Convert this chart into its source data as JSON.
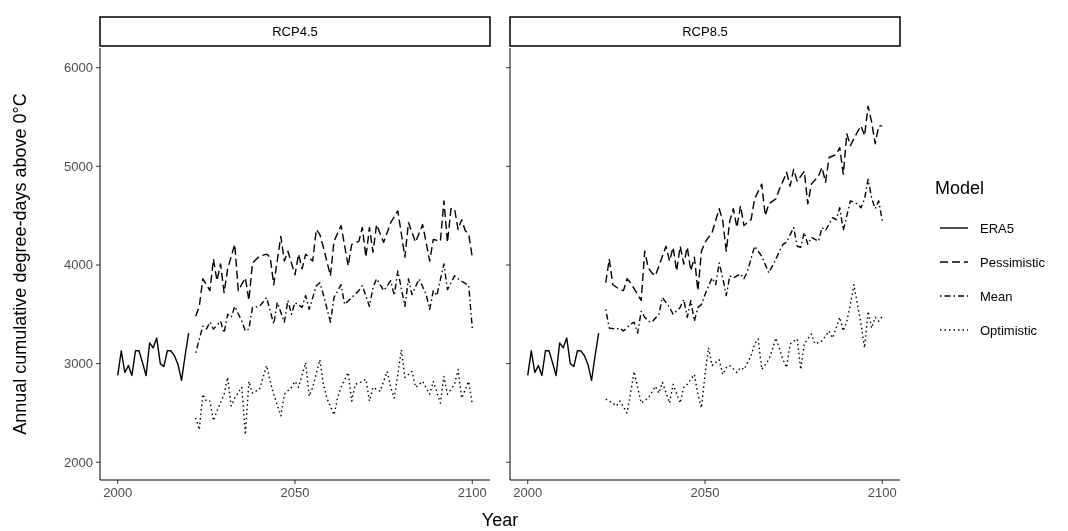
{
  "chart_data": [
    {
      "type": "line",
      "title": "RCP4.5",
      "xlabel": "Year",
      "ylabel": "Annual cumulative degree-days above 0°C",
      "xlim": [
        1995,
        2105
      ],
      "ylim": [
        1820,
        6200
      ],
      "xticks": [
        2000,
        2050,
        2100
      ],
      "yticks": [
        2000,
        3000,
        4000,
        5000,
        6000
      ],
      "grid": false,
      "legend": false,
      "series": [
        {
          "color": "#000000",
          "line_style": "solid",
          "x": [
            2000,
            2001,
            2002,
            2003,
            2004,
            2005,
            2006,
            2007,
            2008,
            2009,
            2010,
            2011,
            2012,
            2013,
            2014,
            2015,
            2016,
            2017,
            2018,
            2019,
            2020
          ],
          "values": [
            2880,
            3130,
            2910,
            2980,
            2880,
            3130,
            3130,
            3010,
            2880,
            3210,
            3160,
            3260,
            3000,
            2970,
            3130,
            3130,
            3080,
            2990,
            2830,
            3080,
            3310
          ]
        },
        {
          "color": "#000000",
          "line_style": "dashed",
          "x": [
            2022,
            2023,
            2024,
            2026,
            2027,
            2028,
            2029,
            2030,
            2031,
            2033,
            2034,
            2036,
            2037,
            2038,
            2040,
            2042,
            2043,
            2044,
            2046,
            2047,
            2048,
            2050,
            2051,
            2052,
            2053,
            2055,
            2056,
            2057,
            2058,
            2060,
            2061,
            2063,
            2065,
            2066,
            2068,
            2069,
            2070,
            2071,
            2072,
            2073,
            2075,
            2076,
            2077,
            2079,
            2081,
            2082,
            2084,
            2086,
            2088,
            2089,
            2091,
            2092,
            2093,
            2094,
            2095,
            2096,
            2097,
            2098,
            2099,
            2100
          ],
          "values": [
            3480,
            3580,
            3860,
            3740,
            4060,
            3840,
            4010,
            3720,
            3960,
            4210,
            3740,
            3870,
            3640,
            4020,
            4090,
            4110,
            4080,
            3800,
            4290,
            4040,
            4140,
            3900,
            4110,
            3960,
            4110,
            4040,
            4360,
            4310,
            4180,
            3890,
            4240,
            4400,
            3990,
            4210,
            4240,
            4380,
            4080,
            4380,
            4130,
            4410,
            4230,
            4330,
            4430,
            4550,
            4080,
            4430,
            4230,
            4410,
            4040,
            4260,
            4240,
            4650,
            4230,
            4570,
            4570,
            4360,
            4460,
            4350,
            4310,
            4080
          ]
        },
        {
          "color": "#000000",
          "line_style": "dashdot",
          "x": [
            2022,
            2024,
            2025,
            2026,
            2027,
            2029,
            2030,
            2031,
            2032,
            2033,
            2035,
            2036,
            2037,
            2038,
            2040,
            2042,
            2044,
            2045,
            2047,
            2048,
            2049,
            2050,
            2052,
            2053,
            2054,
            2056,
            2057,
            2058,
            2060,
            2061,
            2063,
            2064,
            2066,
            2068,
            2069,
            2071,
            2072,
            2073,
            2075,
            2077,
            2078,
            2079,
            2081,
            2082,
            2083,
            2085,
            2087,
            2088,
            2089,
            2090,
            2092,
            2093,
            2095,
            2096,
            2099,
            2100
          ],
          "values": [
            3110,
            3380,
            3350,
            3420,
            3350,
            3430,
            3310,
            3500,
            3470,
            3580,
            3430,
            3330,
            3350,
            3570,
            3580,
            3670,
            3400,
            3620,
            3420,
            3640,
            3500,
            3620,
            3570,
            3690,
            3550,
            3790,
            3820,
            3700,
            3420,
            3670,
            3800,
            3600,
            3670,
            3740,
            3790,
            3580,
            3770,
            3860,
            3740,
            3840,
            3690,
            3940,
            3580,
            3860,
            3700,
            3860,
            3700,
            3550,
            3740,
            3690,
            4010,
            3750,
            3890,
            3860,
            3790,
            3360
          ]
        },
        {
          "color": "#000000",
          "line_style": "dotted",
          "x": [
            2022,
            2023,
            2024,
            2025,
            2026,
            2027,
            2028,
            2030,
            2031,
            2032,
            2033,
            2035,
            2036,
            2037,
            2038,
            2040,
            2042,
            2043,
            2044,
            2046,
            2047,
            2049,
            2050,
            2051,
            2053,
            2054,
            2055,
            2057,
            2058,
            2059,
            2061,
            2062,
            2063,
            2065,
            2066,
            2067,
            2069,
            2070,
            2071,
            2072,
            2074,
            2076,
            2077,
            2078,
            2080,
            2081,
            2083,
            2084,
            2086,
            2088,
            2089,
            2091,
            2092,
            2093,
            2095,
            2096,
            2097,
            2099,
            2100
          ],
          "values": [
            2450,
            2330,
            2690,
            2620,
            2620,
            2420,
            2520,
            2690,
            2860,
            2570,
            2650,
            2760,
            2280,
            2820,
            2700,
            2740,
            2980,
            2820,
            2690,
            2470,
            2690,
            2760,
            2820,
            2760,
            3010,
            2670,
            2760,
            3040,
            2790,
            2650,
            2480,
            2650,
            2760,
            2910,
            2620,
            2790,
            2820,
            2840,
            2620,
            2760,
            2720,
            2920,
            2760,
            2650,
            3140,
            2860,
            2920,
            2760,
            2820,
            2690,
            2820,
            2600,
            2870,
            2690,
            2790,
            2940,
            2650,
            2820,
            2590
          ]
        }
      ]
    },
    {
      "type": "line",
      "title": "RCP8.5",
      "xlim": [
        1995,
        2105
      ],
      "ylim": [
        1820,
        6200
      ],
      "xticks": [
        2000,
        2050,
        2100
      ],
      "yticks": [
        2000,
        3000,
        4000,
        5000,
        6000
      ],
      "tick_labels": "x",
      "grid": false,
      "legend": "right",
      "legend_title": "Model",
      "series": [
        {
          "name": "ERA5",
          "color": "#000000",
          "line_style": "solid",
          "x": [
            2000,
            2001,
            2002,
            2003,
            2004,
            2005,
            2006,
            2007,
            2008,
            2009,
            2010,
            2011,
            2012,
            2013,
            2014,
            2015,
            2016,
            2017,
            2018,
            2019,
            2020
          ],
          "values": [
            2880,
            3130,
            2910,
            2980,
            2880,
            3130,
            3130,
            3010,
            2880,
            3210,
            3160,
            3260,
            3000,
            2970,
            3130,
            3130,
            3080,
            2990,
            2830,
            3080,
            3310
          ]
        },
        {
          "name": "Pessimistic",
          "color": "#000000",
          "line_style": "dashed",
          "x": [
            2022,
            2023,
            2024,
            2026,
            2027,
            2028,
            2029,
            2031,
            2032,
            2033,
            2034,
            2035,
            2036,
            2038,
            2039,
            2040,
            2041,
            2042,
            2043,
            2044,
            2045,
            2046,
            2047,
            2048,
            2049,
            2050,
            2052,
            2054,
            2055,
            2056,
            2057,
            2058,
            2059,
            2060,
            2061,
            2063,
            2064,
            2066,
            2067,
            2068,
            2070,
            2071,
            2072,
            2073,
            2074,
            2075,
            2076,
            2078,
            2079,
            2080,
            2082,
            2083,
            2084,
            2085,
            2087,
            2088,
            2089,
            2090,
            2091,
            2093,
            2094,
            2095,
            2096,
            2097,
            2098,
            2099,
            2100
          ],
          "values": [
            3820,
            4060,
            3800,
            3750,
            3740,
            3860,
            3820,
            3700,
            3640,
            4140,
            3970,
            3920,
            3890,
            4090,
            4190,
            4040,
            4180,
            3940,
            4190,
            4010,
            4180,
            3940,
            4080,
            3740,
            4140,
            4230,
            4330,
            4570,
            4450,
            4140,
            4450,
            4570,
            4380,
            4600,
            4400,
            4460,
            4670,
            4820,
            4500,
            4620,
            4670,
            4770,
            4850,
            4940,
            4800,
            4970,
            4850,
            4950,
            4620,
            4820,
            4900,
            4990,
            4840,
            5090,
            5120,
            5190,
            4920,
            5330,
            5210,
            5350,
            5410,
            5310,
            5610,
            5450,
            5230,
            5410,
            5410
          ]
        },
        {
          "name": "Mean",
          "color": "#000000",
          "line_style": "dashdot",
          "x": [
            2022,
            2023,
            2025,
            2026,
            2027,
            2029,
            2030,
            2031,
            2032,
            2033,
            2034,
            2035,
            2037,
            2038,
            2040,
            2041,
            2043,
            2044,
            2045,
            2046,
            2047,
            2048,
            2049,
            2050,
            2052,
            2053,
            2054,
            2055,
            2056,
            2057,
            2058,
            2060,
            2061,
            2062,
            2064,
            2066,
            2068,
            2070,
            2071,
            2072,
            2073,
            2075,
            2076,
            2077,
            2078,
            2079,
            2080,
            2082,
            2083,
            2084,
            2086,
            2087,
            2088,
            2089,
            2090,
            2091,
            2093,
            2094,
            2095,
            2096,
            2097,
            2098,
            2099,
            2100
          ],
          "values": [
            3550,
            3360,
            3350,
            3360,
            3330,
            3400,
            3420,
            3310,
            3530,
            3470,
            3430,
            3420,
            3500,
            3670,
            3570,
            3500,
            3570,
            3650,
            3470,
            3640,
            3430,
            3570,
            3600,
            3700,
            3870,
            3800,
            4020,
            3870,
            3690,
            3890,
            3870,
            3910,
            3860,
            3940,
            4190,
            4090,
            3920,
            4060,
            4140,
            4210,
            4230,
            4380,
            4190,
            4180,
            4330,
            4210,
            4280,
            4240,
            4380,
            4350,
            4480,
            4460,
            4580,
            4350,
            4500,
            4650,
            4620,
            4580,
            4670,
            4870,
            4680,
            4570,
            4650,
            4450
          ]
        },
        {
          "name": "Optimistic",
          "color": "#000000",
          "line_style": "dotted",
          "x": [
            2022,
            2024,
            2025,
            2026,
            2028,
            2029,
            2030,
            2031,
            2032,
            2034,
            2036,
            2037,
            2038,
            2040,
            2041,
            2043,
            2044,
            2045,
            2047,
            2048,
            2049,
            2050,
            2051,
            2052,
            2054,
            2055,
            2056,
            2057,
            2059,
            2060,
            2061,
            2063,
            2064,
            2065,
            2066,
            2068,
            2069,
            2070,
            2072,
            2073,
            2074,
            2076,
            2077,
            2078,
            2080,
            2081,
            2083,
            2084,
            2085,
            2086,
            2087,
            2088,
            2089,
            2090,
            2091,
            2092,
            2093,
            2094,
            2095,
            2096,
            2097,
            2098,
            2099,
            2100
          ],
          "values": [
            2640,
            2600,
            2570,
            2620,
            2500,
            2700,
            2920,
            2760,
            2600,
            2650,
            2770,
            2700,
            2810,
            2600,
            2790,
            2600,
            2760,
            2790,
            2890,
            2690,
            2550,
            2890,
            3160,
            2980,
            3040,
            2890,
            2960,
            2980,
            2910,
            2960,
            2940,
            3080,
            3200,
            3250,
            2940,
            3040,
            3140,
            3260,
            3040,
            2960,
            3200,
            3250,
            2940,
            3200,
            3300,
            3200,
            3230,
            3280,
            3330,
            3260,
            3360,
            3470,
            3330,
            3430,
            3600,
            3800,
            3600,
            3400,
            3160,
            3530,
            3360,
            3470,
            3430,
            3480
          ]
        }
      ]
    }
  ]
}
